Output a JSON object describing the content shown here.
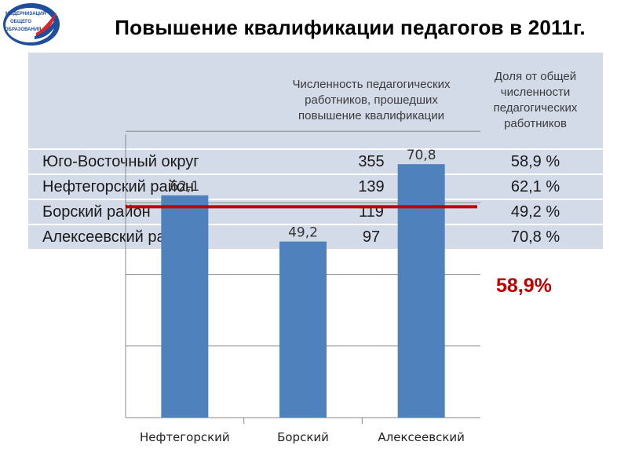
{
  "logo": {
    "lines": [
      "МОДЕРНИЗАЦИЯ",
      "ОБЩЕГО",
      "ОБРАЗОВАНИЯ"
    ],
    "colors": {
      "blue": "#1f4e9c",
      "red": "#d8262c",
      "white": "#ffffff"
    }
  },
  "title": "Повышение  квалификации педагогов в 2011г.",
  "table": {
    "headers": [
      "",
      "Численность педагогических работников, прошедших повышение квалификации",
      "Доля от общей численности педагогических работников"
    ],
    "rows": [
      [
        "Юго-Восточный округ",
        "355",
        "58,9 %"
      ],
      [
        "Нефтегорский район",
        "139",
        "62,1 %"
      ],
      [
        "Борский район",
        "119",
        "49,2 %"
      ],
      [
        "Алексеевский район",
        "97",
        "70,8 %"
      ]
    ],
    "background": "#d3dbe8"
  },
  "chart_data": {
    "type": "bar",
    "categories": [
      "Нефтегорский",
      "Борский",
      "Алексеевский"
    ],
    "values": [
      62.1,
      49.2,
      70.8
    ],
    "data_labels": [
      "62,1",
      "49,2",
      "70,8"
    ],
    "ylim": [
      0,
      80
    ],
    "grid": true,
    "bar_color": "#4f81bd",
    "reference_line": {
      "value": 58.9,
      "label": "58,9%",
      "color": "#c00000"
    }
  }
}
